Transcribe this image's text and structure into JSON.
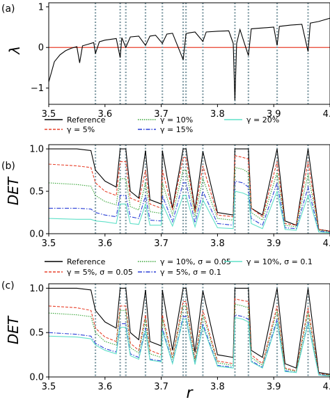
{
  "chart_data": [
    {
      "type": "line",
      "panel_label": "(a)",
      "ylabel": "λ",
      "xlim": [
        3.5,
        4.0
      ],
      "ylim": [
        -1.4,
        1.1
      ],
      "xticks": [
        "3.5",
        "3.6",
        "3.7",
        "3.8",
        "3.9",
        "4.0"
      ],
      "yticks": [
        "1",
        "0",
        "−1"
      ],
      "ytick_values": [
        1,
        0,
        -1
      ],
      "zero_line_color": "#e8412b",
      "vlines": [
        3.583,
        3.627,
        3.637,
        3.672,
        3.702,
        3.739,
        3.744,
        3.774,
        3.831,
        3.855,
        3.906,
        3.961
      ],
      "vline_color": "#7f9aa3",
      "series": [
        {
          "name": "",
          "color": "#000000",
          "x": [
            3.5,
            3.51,
            3.52,
            3.53,
            3.54,
            3.55,
            3.555,
            3.56,
            3.57,
            3.58,
            3.583,
            3.59,
            3.6,
            3.61,
            3.62,
            3.627,
            3.63,
            3.637,
            3.645,
            3.66,
            3.672,
            3.68,
            3.69,
            3.702,
            3.71,
            3.72,
            3.739,
            3.744,
            3.75,
            3.76,
            3.774,
            3.78,
            3.8,
            3.82,
            3.828,
            3.831,
            3.834,
            3.84,
            3.855,
            3.86,
            3.88,
            3.9,
            3.906,
            3.91,
            3.93,
            3.95,
            3.961,
            3.965,
            3.98,
            4.0
          ],
          "values": [
            -0.85,
            -0.35,
            -0.18,
            -0.08,
            -0.02,
            0.02,
            -0.38,
            0.04,
            0.08,
            0.12,
            -0.15,
            0.14,
            0.18,
            0.2,
            0.22,
            -0.25,
            0.24,
            0.0,
            0.26,
            0.28,
            0.05,
            0.28,
            0.3,
            0.1,
            0.33,
            0.35,
            -0.3,
            0.34,
            0.36,
            0.38,
            0.15,
            0.38,
            0.4,
            0.41,
            0.1,
            -1.3,
            0.1,
            0.44,
            -0.2,
            0.46,
            0.48,
            0.5,
            0.05,
            0.52,
            0.55,
            0.57,
            -0.1,
            0.6,
            0.64,
            0.72
          ]
        }
      ]
    },
    {
      "type": "line",
      "panel_label": "(b)",
      "ylabel": "DET",
      "xlim": [
        3.5,
        4.0
      ],
      "ylim": [
        0.0,
        1.05
      ],
      "xticks": [
        "3.5",
        "3.6",
        "3.7",
        "3.8",
        "3.9",
        "4.0"
      ],
      "yticks": [
        "1.0",
        "0.5",
        "0.0"
      ],
      "ytick_values": [
        1.0,
        0.5,
        0.0
      ],
      "legend": [
        {
          "label": "Reference",
          "color": "#000000",
          "dash": ""
        },
        {
          "label": "γ = 5%",
          "color": "#e8412b",
          "dash": "4,2"
        },
        {
          "label": "γ = 10%",
          "color": "#3aa63a",
          "dash": "1.5,1.5"
        },
        {
          "label": "γ = 15%",
          "color": "#2a3fd6",
          "dash": "6,2,1.5,2"
        },
        {
          "label": "γ = 20%",
          "color": "#5fe0c8",
          "dash": ""
        }
      ],
      "x": [
        3.5,
        3.55,
        3.575,
        3.583,
        3.6,
        3.62,
        3.627,
        3.637,
        3.645,
        3.66,
        3.672,
        3.68,
        3.7,
        3.702,
        3.72,
        3.739,
        3.744,
        3.76,
        3.774,
        3.8,
        3.828,
        3.831,
        3.845,
        3.855,
        3.86,
        3.88,
        3.906,
        3.92,
        3.94,
        3.961,
        3.98,
        4.0
      ],
      "series": [
        {
          "name": "Reference",
          "color": "#000000",
          "values": [
            1.0,
            1.0,
            0.98,
            0.75,
            0.62,
            0.55,
            1.0,
            1.0,
            0.5,
            0.42,
            0.98,
            0.4,
            0.35,
            0.98,
            0.3,
            1.0,
            1.0,
            0.28,
            0.97,
            0.25,
            0.22,
            1.0,
            1.0,
            1.0,
            0.3,
            0.22,
            1.0,
            0.15,
            0.1,
            1.0,
            0.05,
            0.03
          ]
        },
        {
          "name": "γ = 5%",
          "color": "#e8412b",
          "values": [
            0.82,
            0.8,
            0.78,
            0.6,
            0.5,
            0.45,
            0.85,
            0.85,
            0.42,
            0.38,
            0.75,
            0.35,
            0.3,
            0.75,
            0.28,
            0.9,
            0.9,
            0.25,
            0.8,
            0.22,
            0.2,
            0.92,
            0.9,
            0.88,
            0.3,
            0.2,
            0.85,
            0.12,
            0.1,
            0.85,
            0.05,
            0.03
          ]
        },
        {
          "name": "γ = 10%",
          "color": "#3aa63a",
          "values": [
            0.6,
            0.58,
            0.56,
            0.45,
            0.38,
            0.34,
            0.65,
            0.65,
            0.32,
            0.28,
            0.6,
            0.26,
            0.24,
            0.6,
            0.22,
            0.75,
            0.75,
            0.2,
            0.65,
            0.18,
            0.16,
            0.78,
            0.76,
            0.72,
            0.25,
            0.16,
            0.72,
            0.1,
            0.08,
            0.7,
            0.04,
            0.02
          ]
        },
        {
          "name": "γ = 15%",
          "color": "#2a3fd6",
          "values": [
            0.3,
            0.3,
            0.29,
            0.25,
            0.22,
            0.2,
            0.45,
            0.45,
            0.2,
            0.18,
            0.45,
            0.16,
            0.15,
            0.45,
            0.14,
            0.6,
            0.6,
            0.13,
            0.5,
            0.12,
            0.1,
            0.62,
            0.6,
            0.55,
            0.18,
            0.1,
            0.6,
            0.07,
            0.06,
            0.55,
            0.03,
            0.02
          ]
        },
        {
          "name": "γ = 20%",
          "color": "#5fe0c8",
          "values": [
            0.18,
            0.17,
            0.17,
            0.15,
            0.14,
            0.12,
            0.35,
            0.35,
            0.12,
            0.11,
            0.35,
            0.1,
            0.1,
            0.35,
            0.09,
            0.45,
            0.45,
            0.08,
            0.4,
            0.07,
            0.06,
            0.5,
            0.48,
            0.45,
            0.12,
            0.06,
            0.5,
            0.05,
            0.04,
            0.45,
            0.02,
            0.01
          ]
        }
      ],
      "vlines": [
        3.583,
        3.627,
        3.637,
        3.672,
        3.702,
        3.739,
        3.744,
        3.774,
        3.831,
        3.855,
        3.906,
        3.961
      ],
      "vline_color": "#7f9aa3"
    },
    {
      "type": "line",
      "panel_label": "(c)",
      "ylabel": "DET",
      "xlabel": "r",
      "xlim": [
        3.5,
        4.0
      ],
      "ylim": [
        0.0,
        1.05
      ],
      "xticks": [
        "3.5",
        "3.6",
        "3.7",
        "3.8",
        "3.9",
        "4.0"
      ],
      "yticks": [
        "1.0",
        "0.5",
        "0.0"
      ],
      "ytick_values": [
        1.0,
        0.5,
        0.0
      ],
      "legend": [
        {
          "label": "Reference",
          "color": "#000000",
          "dash": ""
        },
        {
          "label": "γ = 5%, σ = 0.05",
          "color": "#e8412b",
          "dash": "4,2"
        },
        {
          "label": "γ = 10%, σ = 0.05",
          "color": "#3aa63a",
          "dash": "1.5,1.5"
        },
        {
          "label": "γ = 5%, σ = 0.1",
          "color": "#2a3fd6",
          "dash": "6,2,1.5,2"
        },
        {
          "label": "γ = 10%, σ = 0.1",
          "color": "#5fe0c8",
          "dash": ""
        }
      ],
      "x": [
        3.5,
        3.55,
        3.575,
        3.583,
        3.6,
        3.62,
        3.627,
        3.637,
        3.645,
        3.66,
        3.672,
        3.68,
        3.7,
        3.702,
        3.72,
        3.739,
        3.744,
        3.76,
        3.774,
        3.8,
        3.828,
        3.831,
        3.845,
        3.855,
        3.86,
        3.88,
        3.906,
        3.92,
        3.94,
        3.961,
        3.98,
        4.0
      ],
      "series": [
        {
          "name": "Reference",
          "color": "#000000",
          "values": [
            1.0,
            1.0,
            0.98,
            0.75,
            0.62,
            0.55,
            1.0,
            1.0,
            0.5,
            0.42,
            0.98,
            0.4,
            0.35,
            0.98,
            0.3,
            1.0,
            1.0,
            0.28,
            0.97,
            0.25,
            0.22,
            1.0,
            1.0,
            1.0,
            0.3,
            0.22,
            1.0,
            0.15,
            0.1,
            1.0,
            0.05,
            0.03
          ]
        },
        {
          "name": "γ = 5%, σ = 0.05",
          "color": "#e8412b",
          "values": [
            0.8,
            0.78,
            0.75,
            0.55,
            0.45,
            0.4,
            0.8,
            0.8,
            0.38,
            0.3,
            0.7,
            0.3,
            0.25,
            0.7,
            0.22,
            0.85,
            0.85,
            0.2,
            0.75,
            0.18,
            0.15,
            0.88,
            0.86,
            0.85,
            0.25,
            0.15,
            0.8,
            0.1,
            0.07,
            0.78,
            0.04,
            0.02
          ]
        },
        {
          "name": "γ = 10%, σ = 0.05",
          "color": "#3aa63a",
          "values": [
            0.72,
            0.7,
            0.68,
            0.5,
            0.4,
            0.36,
            0.75,
            0.75,
            0.33,
            0.27,
            0.65,
            0.26,
            0.22,
            0.65,
            0.2,
            0.8,
            0.8,
            0.18,
            0.7,
            0.16,
            0.13,
            0.82,
            0.8,
            0.78,
            0.22,
            0.13,
            0.75,
            0.09,
            0.06,
            0.72,
            0.03,
            0.02
          ]
        },
        {
          "name": "γ = 5%, σ = 0.1",
          "color": "#2a3fd6",
          "values": [
            0.5,
            0.48,
            0.46,
            0.38,
            0.32,
            0.28,
            0.6,
            0.6,
            0.26,
            0.22,
            0.55,
            0.2,
            0.18,
            0.55,
            0.16,
            0.68,
            0.68,
            0.15,
            0.6,
            0.13,
            0.11,
            0.7,
            0.68,
            0.65,
            0.18,
            0.11,
            0.65,
            0.07,
            0.05,
            0.62,
            0.03,
            0.01
          ]
        },
        {
          "name": "γ = 10%, σ = 0.1",
          "color": "#5fe0c8",
          "values": [
            0.46,
            0.45,
            0.43,
            0.36,
            0.3,
            0.26,
            0.56,
            0.56,
            0.24,
            0.2,
            0.52,
            0.19,
            0.17,
            0.52,
            0.15,
            0.65,
            0.65,
            0.14,
            0.57,
            0.12,
            0.1,
            0.67,
            0.65,
            0.62,
            0.17,
            0.1,
            0.62,
            0.06,
            0.05,
            0.6,
            0.02,
            0.01
          ]
        }
      ],
      "vlines": [
        3.583,
        3.627,
        3.637,
        3.672,
        3.702,
        3.739,
        3.744,
        3.774,
        3.831,
        3.855,
        3.906,
        3.961
      ],
      "vline_color": "#7f9aa3"
    }
  ]
}
